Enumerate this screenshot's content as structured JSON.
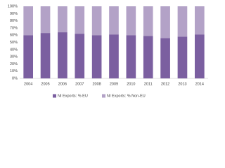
{
  "chart_data": {
    "type": "stacked-bar",
    "categories": [
      "2004",
      "2005",
      "2006",
      "2007",
      "2008",
      "2009",
      "2010",
      "2011",
      "2012",
      "2013",
      "2014"
    ],
    "series": [
      {
        "name": "NI Exports: % EU",
        "color": "#7b5fa0",
        "values": [
          60,
          63,
          64,
          62,
          60,
          61,
          60,
          59,
          56,
          58,
          61
        ]
      },
      {
        "name": "NI Exports: % Non-EU",
        "color": "#b3a2c7",
        "values": [
          40,
          37,
          36,
          38,
          40,
          39,
          40,
          41,
          44,
          42,
          39
        ]
      }
    ],
    "ylim": [
      0,
      100
    ],
    "yticks": [
      {
        "value": 0,
        "label": "0%"
      },
      {
        "value": 10,
        "label": "10%"
      },
      {
        "value": 20,
        "label": "20%"
      },
      {
        "value": 30,
        "label": "30%"
      },
      {
        "value": 40,
        "label": "40%"
      },
      {
        "value": 50,
        "label": "50%"
      },
      {
        "value": 60,
        "label": "60%"
      },
      {
        "value": 70,
        "label": "70%"
      },
      {
        "value": 80,
        "label": "80%"
      },
      {
        "value": 90,
        "label": "90%"
      },
      {
        "value": 100,
        "label": "100%"
      }
    ],
    "grid": false,
    "legend": "bottom"
  }
}
